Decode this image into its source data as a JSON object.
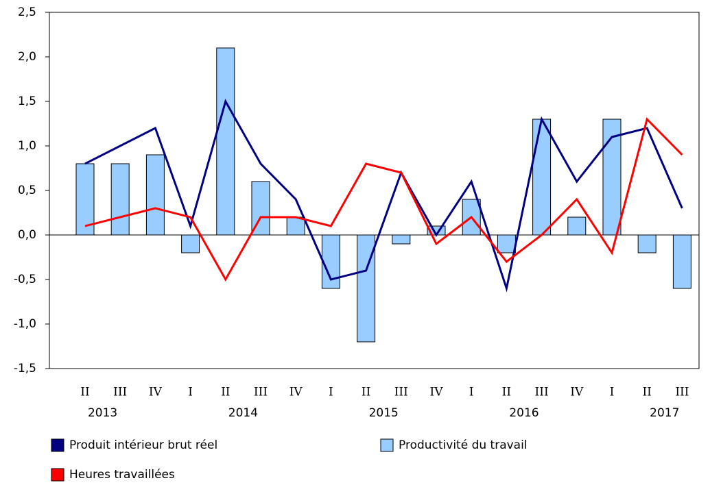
{
  "chart_data": {
    "type": "bar-line",
    "categories": [
      "II",
      "III",
      "IV",
      "I",
      "II",
      "III",
      "IV",
      "I",
      "II",
      "III",
      "IV",
      "I",
      "II",
      "III",
      "IV",
      "I",
      "II",
      "III"
    ],
    "year_labels": [
      "2013",
      "2014",
      "2015",
      "2016",
      "2017"
    ],
    "series": [
      {
        "name": "Produit intérieur brut réel",
        "type": "line",
        "color": "#000080",
        "values": [
          0.8,
          1.0,
          1.2,
          0.1,
          1.5,
          0.8,
          0.4,
          -0.5,
          -0.4,
          0.7,
          0.0,
          0.6,
          -0.6,
          1.3,
          0.6,
          1.1,
          1.2,
          0.3
        ]
      },
      {
        "name": "Productivité du travail",
        "type": "bar",
        "color": "#99ccff",
        "values": [
          0.8,
          0.8,
          0.9,
          -0.2,
          2.1,
          0.6,
          0.2,
          -0.6,
          -1.2,
          -0.1,
          0.1,
          0.4,
          -0.2,
          1.3,
          0.2,
          1.3,
          -0.2,
          -0.6
        ]
      },
      {
        "name": "Heures travaillées",
        "type": "line",
        "color": "#ff0000",
        "values": [
          0.1,
          0.2,
          0.3,
          0.2,
          -0.5,
          0.2,
          0.2,
          0.1,
          0.8,
          0.7,
          -0.1,
          0.2,
          -0.3,
          0.0,
          0.4,
          -0.2,
          1.3,
          0.9
        ]
      }
    ],
    "ylim": [
      -1.5,
      2.5
    ],
    "yticks": [
      {
        "value": -1.5,
        "label": "-1,5"
      },
      {
        "value": -1.0,
        "label": "-1,0"
      },
      {
        "value": -0.5,
        "label": "-0,5"
      },
      {
        "value": 0,
        "label": "0,0"
      },
      {
        "value": 0.5,
        "label": "0,5"
      },
      {
        "value": 1.0,
        "label": "1,0"
      },
      {
        "value": 1.5,
        "label": "1,5"
      },
      {
        "value": 2.0,
        "label": "2,0"
      },
      {
        "value": 2.5,
        "label": "2,5"
      }
    ],
    "grid": false
  }
}
